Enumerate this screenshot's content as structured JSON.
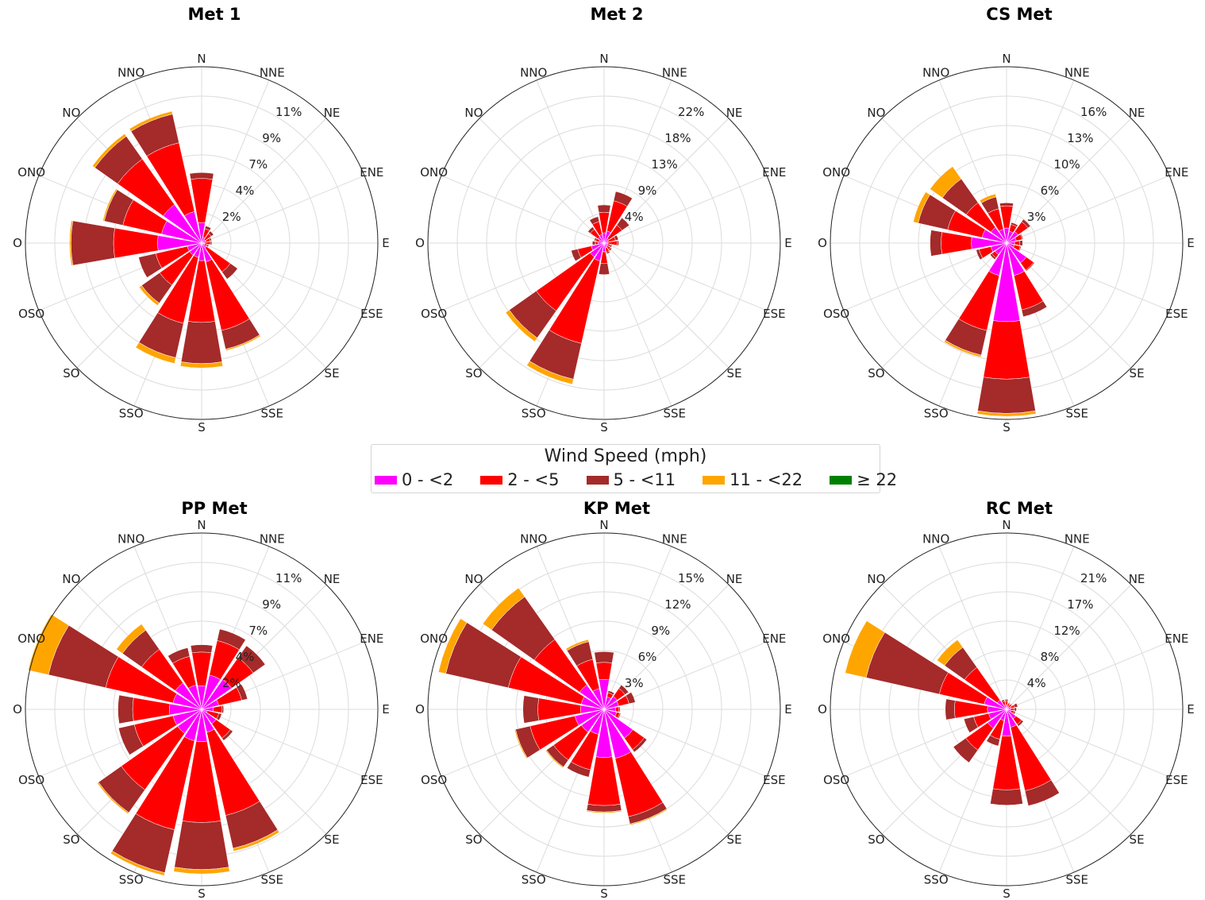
{
  "legend": {
    "title": "Wind Speed (mph)",
    "bins": [
      {
        "label": "0 - <2",
        "color": "#ff00ff"
      },
      {
        "label": "2 - <5",
        "color": "#ff0000"
      },
      {
        "label": "5 - <11",
        "color": "#a52a2a"
      },
      {
        "label": "11 - <22",
        "color": "#ffa500"
      },
      {
        "label": "≥ 22",
        "color": "#008000"
      }
    ]
  },
  "chart_data": [
    {
      "type": "windrose",
      "title": "Met 1",
      "directions": [
        "N",
        "NNE",
        "NE",
        "ENE",
        "E",
        "ESE",
        "SE",
        "SSE",
        "S",
        "SSO",
        "SO",
        "OSO",
        "O",
        "ONO",
        "NO",
        "NNO"
      ],
      "rticks": [
        "2%",
        "4%",
        "7%",
        "9%",
        "11%"
      ],
      "rmax": 12,
      "series": [
        {
          "name": "0 - <2",
          "values": [
            1.4,
            0.4,
            0.3,
            0.3,
            0.2,
            0.2,
            0.4,
            1.3,
            1.2,
            1.0,
            1.0,
            1.0,
            3.0,
            2.8,
            3.2,
            2.2
          ]
        },
        {
          "name": "2 - <5",
          "values": [
            3.0,
            0.6,
            0.5,
            0.3,
            0.4,
            0.2,
            2.0,
            4.8,
            4.2,
            4.6,
            2.5,
            2.2,
            3.0,
            2.7,
            3.8,
            4.8
          ]
        },
        {
          "name": "5 - <11",
          "values": [
            0.4,
            0.2,
            0.2,
            0.1,
            0.1,
            0.1,
            0.6,
            1.3,
            2.8,
            2.4,
            1.5,
            1.2,
            2.9,
            1.3,
            1.9,
            2.0
          ]
        },
        {
          "name": "11 - <22",
          "values": [
            0,
            0,
            0,
            0,
            0,
            0,
            0,
            0.1,
            0.3,
            0.4,
            0.2,
            0,
            0.1,
            0.1,
            0.2,
            0.2
          ]
        },
        {
          "name": "≥ 22",
          "values": [
            0,
            0,
            0,
            0,
            0,
            0,
            0,
            0,
            0,
            0,
            0,
            0,
            0,
            0,
            0,
            0
          ]
        }
      ]
    },
    {
      "type": "windrose",
      "title": "Met 2",
      "directions": [
        "N",
        "NNE",
        "NE",
        "ENE",
        "E",
        "ESE",
        "SE",
        "SSE",
        "S",
        "SSO",
        "SO",
        "OSO",
        "O",
        "ONO",
        "NO",
        "NNO"
      ],
      "rticks": [
        "4%",
        "9%",
        "13%",
        "18%",
        "22%"
      ],
      "rmax": 24,
      "series": [
        {
          "name": "0 - <2",
          "values": [
            1.4,
            1.7,
            0.8,
            0.6,
            0.5,
            0.5,
            0.6,
            0.7,
            1.2,
            2.5,
            2.3,
            1.8,
            0.8,
            0.7,
            1.0,
            1.2
          ]
        },
        {
          "name": "2 - <5",
          "values": [
            2.8,
            4.2,
            2.2,
            1.0,
            1.3,
            0.4,
            0.5,
            0.6,
            1.6,
            11.5,
            9.0,
            1.9,
            0.4,
            0.5,
            1.3,
            1.8
          ]
        },
        {
          "name": "5 - <11",
          "values": [
            1.0,
            1.3,
            1.2,
            0.4,
            0.2,
            0.2,
            0.2,
            0.2,
            1.5,
            5.0,
            4.5,
            0.9,
            0.4,
            0.2,
            0.4,
            0.7
          ]
        },
        {
          "name": "11 - <22",
          "values": [
            0,
            0,
            0,
            0,
            0,
            0,
            0,
            0,
            0,
            0.7,
            0.6,
            0,
            0,
            0,
            0,
            0
          ]
        },
        {
          "name": "≥ 22",
          "values": [
            0,
            0,
            0,
            0,
            0,
            0,
            0,
            0,
            0,
            0,
            0,
            0,
            0,
            0,
            0,
            0
          ]
        }
      ]
    },
    {
      "type": "windrose",
      "title": "CS Met",
      "directions": [
        "N",
        "NNE",
        "NE",
        "ENE",
        "E",
        "ESE",
        "SE",
        "SSE",
        "S",
        "SSO",
        "SO",
        "OSO",
        "O",
        "ONO",
        "NO",
        "NNO"
      ],
      "rticks": [
        "3%",
        "6%",
        "10%",
        "13%",
        "16%"
      ],
      "rmax": 17.5,
      "series": [
        {
          "name": "0 - <2",
          "values": [
            1.5,
            1.2,
            1.4,
            1.0,
            0.8,
            0.8,
            2.4,
            3.3,
            7.8,
            3.3,
            1.4,
            1.6,
            3.5,
            2.5,
            1.9,
            1.4
          ]
        },
        {
          "name": "2 - <5",
          "values": [
            2.2,
            0.7,
            1.2,
            0.6,
            0.5,
            0.6,
            0.9,
            3.5,
            5.7,
            5.6,
            0.4,
            1.2,
            3.0,
            3.5,
            3.0,
            2.1
          ]
        },
        {
          "name": "5 - <11",
          "values": [
            0.3,
            0.2,
            0.3,
            0.1,
            0.3,
            0.1,
            0.1,
            0.7,
            3.4,
            2.5,
            0.2,
            0.3,
            1.1,
            3.0,
            2.9,
            1.2
          ]
        },
        {
          "name": "11 - <22",
          "values": [
            0,
            0,
            0,
            0,
            0,
            0,
            0,
            0,
            0.3,
            0.2,
            0,
            0,
            0,
            0.5,
            1.5,
            0.3
          ]
        },
        {
          "name": "≥ 22",
          "values": [
            0,
            0,
            0,
            0,
            0,
            0,
            0,
            0,
            0,
            0,
            0,
            0,
            0,
            0,
            0,
            0
          ]
        }
      ]
    },
    {
      "type": "windrose",
      "title": "PP Met",
      "directions": [
        "N",
        "NNE",
        "NE",
        "ENE",
        "E",
        "ESE",
        "SE",
        "SSE",
        "S",
        "SSO",
        "SO",
        "OSO",
        "O",
        "ONO",
        "NO",
        "NNO"
      ],
      "rticks": [
        "2%",
        "4%",
        "7%",
        "9%",
        "11%"
      ],
      "rmax": 12,
      "series": [
        {
          "name": "0 - <2",
          "values": [
            1.6,
            2.4,
            2.5,
            1.2,
            0.8,
            0.4,
            1.2,
            1.6,
            2.2,
            2.2,
            2.0,
            2.0,
            2.2,
            2.0,
            2.2,
            1.7
          ]
        },
        {
          "name": "2 - <5",
          "values": [
            2.3,
            2.4,
            1.8,
            1.6,
            0.6,
            0.8,
            1.2,
            5.8,
            5.5,
            6.2,
            4.7,
            2.7,
            2.5,
            4.7,
            2.8,
            2.0
          ]
        },
        {
          "name": "5 - <11",
          "values": [
            0.5,
            0.8,
            1.0,
            0.4,
            0.1,
            0.2,
            0.2,
            2.3,
            3.2,
            3.0,
            1.9,
            1.1,
            1.0,
            4.0,
            1.6,
            0.6
          ]
        },
        {
          "name": "11 - <22",
          "values": [
            0,
            0,
            0,
            0,
            0,
            0,
            0,
            0.2,
            0.3,
            0.2,
            0.1,
            0,
            0,
            1.4,
            0.5,
            0
          ]
        },
        {
          "name": "≥ 22",
          "values": [
            0,
            0,
            0,
            0,
            0,
            0,
            0,
            0,
            0,
            0,
            0,
            0,
            0,
            0,
            0,
            0
          ]
        }
      ]
    },
    {
      "type": "windrose",
      "title": "KP Met",
      "directions": [
        "N",
        "NNE",
        "NE",
        "ENE",
        "E",
        "ESE",
        "SE",
        "SSE",
        "S",
        "SSO",
        "SO",
        "OSO",
        "O",
        "ONO",
        "NO",
        "NNO"
      ],
      "rticks": [
        "3%",
        "6%",
        "9%",
        "12%",
        "15%"
      ],
      "rmax": 16.5,
      "series": [
        {
          "name": "0 - <2",
          "values": [
            2.8,
            1.2,
            1.5,
            1.4,
            1.1,
            1.2,
            3.3,
            4.7,
            4.5,
            2.4,
            2.6,
            2.8,
            2.2,
            2.2,
            2.8,
            2.0
          ]
        },
        {
          "name": "2 - <5",
          "values": [
            1.6,
            0.4,
            0.9,
            1.0,
            0.3,
            0.3,
            1.3,
            5.6,
            4.5,
            3.4,
            3.2,
            4.3,
            4.0,
            7.0,
            5.2,
            2.8
          ]
        },
        {
          "name": "5 - <11",
          "values": [
            1.0,
            0.2,
            0.4,
            0.6,
            0.1,
            0.1,
            0.3,
            0.7,
            0.6,
            0.7,
            0.8,
            1.4,
            1.4,
            6.0,
            4.9,
            1.7
          ]
        },
        {
          "name": "11 - <22",
          "values": [
            0,
            0,
            0,
            0,
            0,
            0,
            0,
            0.1,
            0.1,
            0,
            0.1,
            0.1,
            0,
            0.7,
            1.0,
            0.2
          ]
        },
        {
          "name": "≥ 22",
          "values": [
            0,
            0,
            0,
            0,
            0,
            0,
            0,
            0,
            0,
            0,
            0,
            0,
            0,
            0,
            0,
            0
          ]
        }
      ]
    },
    {
      "type": "windrose",
      "title": "RC Met",
      "directions": [
        "N",
        "NNE",
        "NE",
        "ENE",
        "E",
        "ESE",
        "SE",
        "SSE",
        "S",
        "SSO",
        "SO",
        "OSO",
        "O",
        "ONO",
        "NO",
        "NNO"
      ],
      "rticks": [
        "4%",
        "8%",
        "12%",
        "17%",
        "21%"
      ],
      "rmax": 23,
      "series": [
        {
          "name": "0 - <2",
          "values": [
            0.6,
            0.4,
            0.4,
            0.6,
            0.5,
            0.6,
            1.5,
            2.4,
            3.5,
            1.5,
            3.0,
            2.4,
            2.5,
            3.0,
            1.5,
            0.6
          ]
        },
        {
          "name": "2 - <5",
          "values": [
            0.5,
            0.4,
            0.4,
            0.5,
            0.5,
            0.4,
            0.9,
            8.5,
            7.0,
            2.5,
            3.5,
            2.0,
            4.3,
            6.0,
            5.2,
            0.5
          ]
        },
        {
          "name": "5 - <11",
          "values": [
            0.2,
            0.1,
            0.1,
            0.4,
            0.3,
            0.2,
            0.3,
            2.0,
            2.0,
            0.9,
            2.0,
            1.3,
            1.2,
            9.8,
            3.2,
            0.2
          ]
        },
        {
          "name": "11 - <22",
          "values": [
            0,
            0,
            0,
            0,
            0,
            0,
            0,
            0,
            0,
            0,
            0,
            0,
            0,
            2.8,
            1.2,
            0
          ]
        },
        {
          "name": "≥ 22",
          "values": [
            0,
            0,
            0,
            0,
            0,
            0,
            0,
            0,
            0,
            0,
            0,
            0,
            0,
            0,
            0,
            0
          ]
        }
      ]
    }
  ]
}
